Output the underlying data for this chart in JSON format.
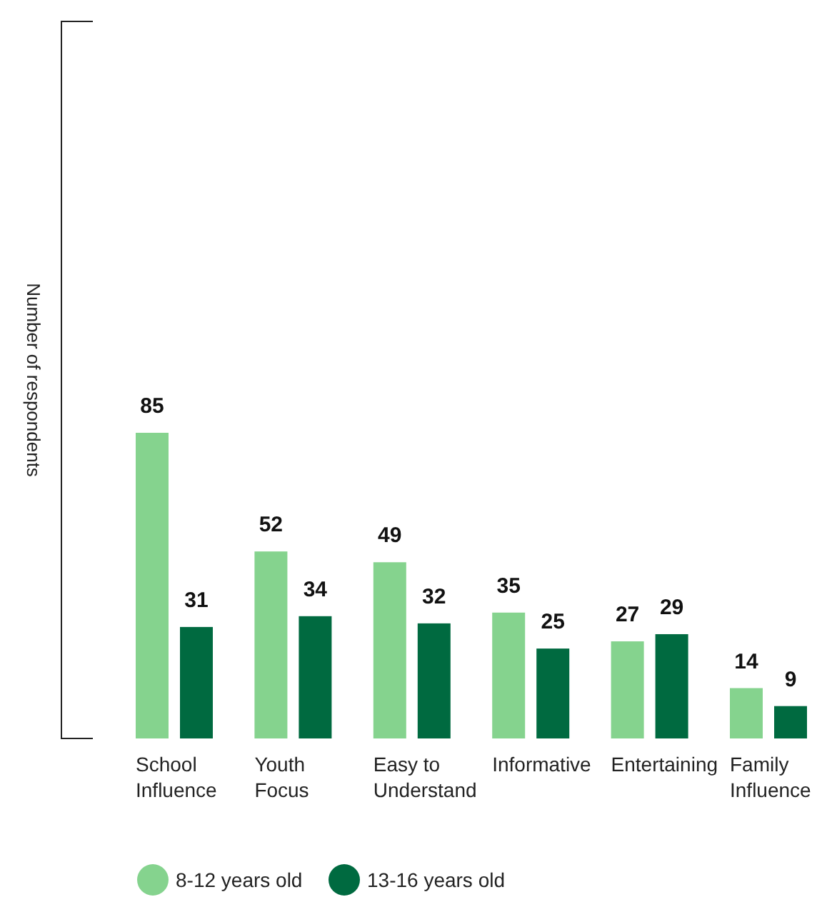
{
  "chart_data": {
    "type": "bar",
    "ylabel": "Number of respondents",
    "categories": [
      "School Influence",
      "Youth Focus",
      "Easy to Understand",
      "Informative",
      "Entertaining",
      "Family Influence"
    ],
    "series": [
      {
        "name": "8-12 years old",
        "color": "#85d38e",
        "values": [
          85,
          52,
          49,
          35,
          27,
          14
        ]
      },
      {
        "name": "13-16 years old",
        "color": "#006a40",
        "values": [
          31,
          34,
          32,
          25,
          29,
          9
        ]
      }
    ],
    "data_labels": true,
    "legend": "bottom"
  }
}
